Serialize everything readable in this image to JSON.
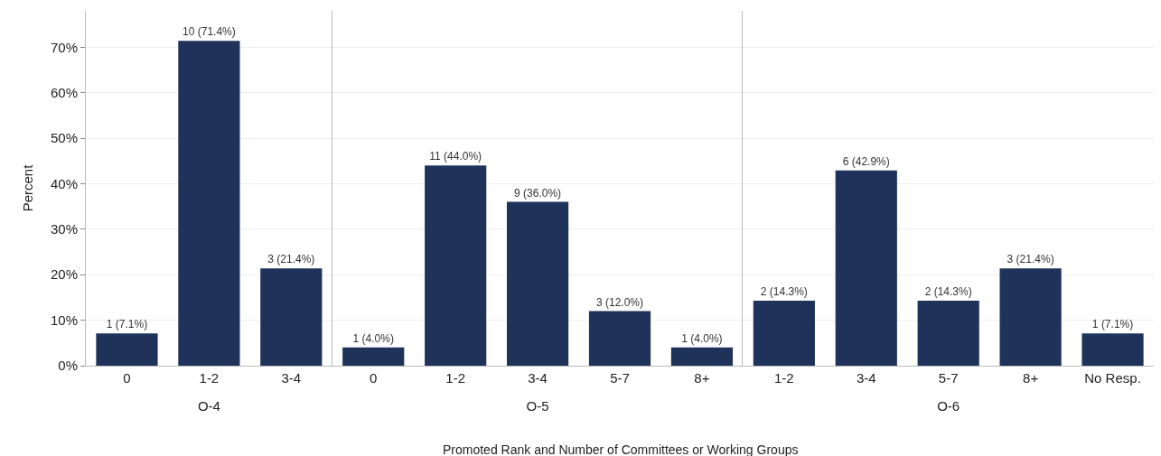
{
  "chart_data": [
    {
      "type": "bar",
      "xlabel": "O-4",
      "ylabel": "Percent",
      "categories": [
        "0",
        "1-2",
        "3-4"
      ],
      "values": [
        7.1,
        71.4,
        21.4
      ],
      "value_labels": [
        "1 (7.1%)",
        "10 (71.4%)",
        "3 (21.4%)"
      ],
      "color": "#1f325a",
      "ylim": [
        0,
        78
      ],
      "yticks": [
        {
          "value": 0,
          "label": "0%"
        },
        {
          "value": 10,
          "label": "10%"
        },
        {
          "value": 20,
          "label": "20%"
        },
        {
          "value": 30,
          "label": "30%"
        },
        {
          "value": 40,
          "label": "40%"
        },
        {
          "value": 50,
          "label": "50%"
        },
        {
          "value": 60,
          "label": "60%"
        },
        {
          "value": 70,
          "label": "70%"
        }
      ],
      "grid": "y",
      "annotations": [
        "Promoted Rank and Number of Committees or Working Groups"
      ]
    },
    {
      "type": "bar",
      "xlabel": "O-5",
      "categories": [
        "0",
        "1-2",
        "3-4",
        "5-7",
        "8+"
      ],
      "values": [
        4.0,
        44.0,
        36.0,
        12.0,
        4.0
      ],
      "value_labels": [
        "1 (4.0%)",
        "11 (44.0%)",
        "9 (36.0%)",
        "3 (12.0%)",
        "1 (4.0%)"
      ],
      "color": "#1f325a",
      "ylim": [
        0,
        78
      ],
      "yticks": [
        0,
        10,
        20,
        30,
        40,
        50,
        60,
        70
      ],
      "grid": "y",
      "tick_labels": "x"
    },
    {
      "type": "bar",
      "xlabel": "O-6",
      "categories": [
        "1-2",
        "3-4",
        "5-7",
        "8+",
        "No Resp."
      ],
      "values": [
        14.3,
        42.9,
        14.3,
        21.4,
        7.1
      ],
      "value_labels": [
        "2 (14.3%)",
        "6 (42.9%)",
        "2 (14.3%)",
        "3 (21.4%)",
        "1 (7.1%)"
      ],
      "color": "#1f325a",
      "ylim": [
        0,
        78
      ],
      "yticks": [
        0,
        10,
        20,
        30,
        40,
        50,
        60,
        70
      ],
      "grid": "y",
      "tick_labels": "x"
    }
  ]
}
